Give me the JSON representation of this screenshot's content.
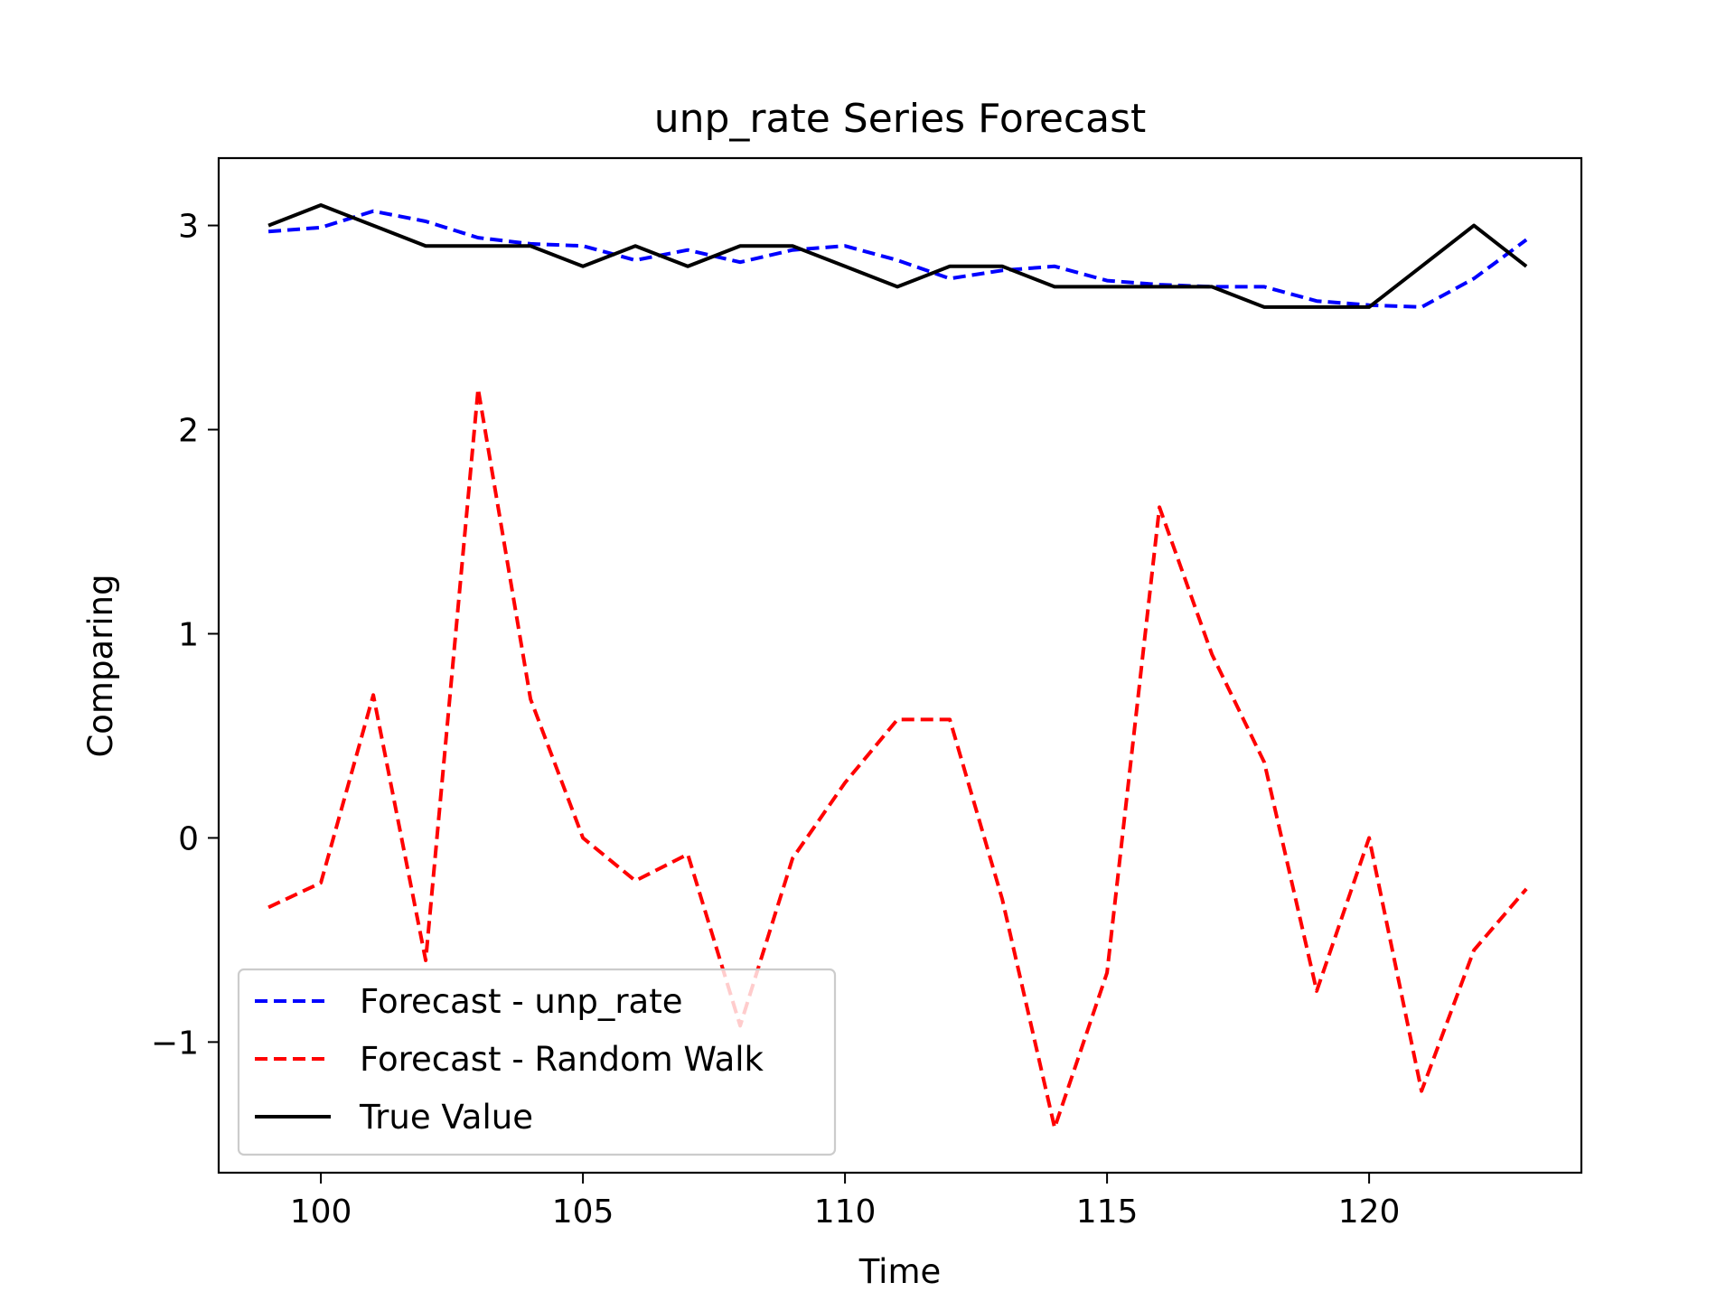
{
  "chart_data": {
    "type": "line",
    "title": "unp_rate Series Forecast",
    "xlabel": "Time",
    "ylabel": "Comparing",
    "x": [
      99,
      100,
      101,
      102,
      103,
      104,
      105,
      106,
      107,
      108,
      109,
      110,
      111,
      112,
      113,
      114,
      115,
      116,
      117,
      118,
      119,
      120,
      121,
      122,
      123
    ],
    "xlim": [
      98.05,
      124.05
    ],
    "ylim": [
      -1.64,
      3.33
    ],
    "x_ticks": [
      100,
      105,
      110,
      115,
      120
    ],
    "y_ticks": [
      -1,
      0,
      1,
      2,
      3
    ],
    "x_tick_labels": [
      "100",
      "105",
      "110",
      "115",
      "120"
    ],
    "y_tick_labels": [
      "−1",
      "0",
      "1",
      "2",
      "3"
    ],
    "grid": false,
    "legend_position": "lower-left",
    "series": [
      {
        "name": "Forecast - unp_rate",
        "color": "#0000ff",
        "style": "dashed",
        "values": [
          2.97,
          2.99,
          3.07,
          3.02,
          2.94,
          2.91,
          2.9,
          2.83,
          2.88,
          2.82,
          2.88,
          2.9,
          2.83,
          2.74,
          2.78,
          2.8,
          2.73,
          2.71,
          2.7,
          2.7,
          2.63,
          2.61,
          2.6,
          2.74,
          2.93
        ]
      },
      {
        "name": "Forecast - Random Walk",
        "color": "#ff0000",
        "style": "dashed",
        "values": [
          -0.34,
          -0.22,
          0.7,
          -0.6,
          2.2,
          0.68,
          0.0,
          -0.21,
          -0.08,
          -0.92,
          -0.1,
          0.27,
          0.58,
          0.58,
          -0.3,
          -1.42,
          -0.66,
          1.62,
          0.9,
          0.37,
          -0.75,
          0.0,
          -1.24,
          -0.55,
          -0.25
        ]
      },
      {
        "name": "True Value",
        "color": "#000000",
        "style": "solid",
        "values": [
          3.0,
          3.1,
          3.0,
          2.9,
          2.9,
          2.9,
          2.8,
          2.9,
          2.8,
          2.9,
          2.9,
          2.8,
          2.7,
          2.8,
          2.8,
          2.7,
          2.7,
          2.7,
          2.7,
          2.6,
          2.6,
          2.6,
          2.8,
          3.0,
          2.8
        ]
      }
    ]
  }
}
